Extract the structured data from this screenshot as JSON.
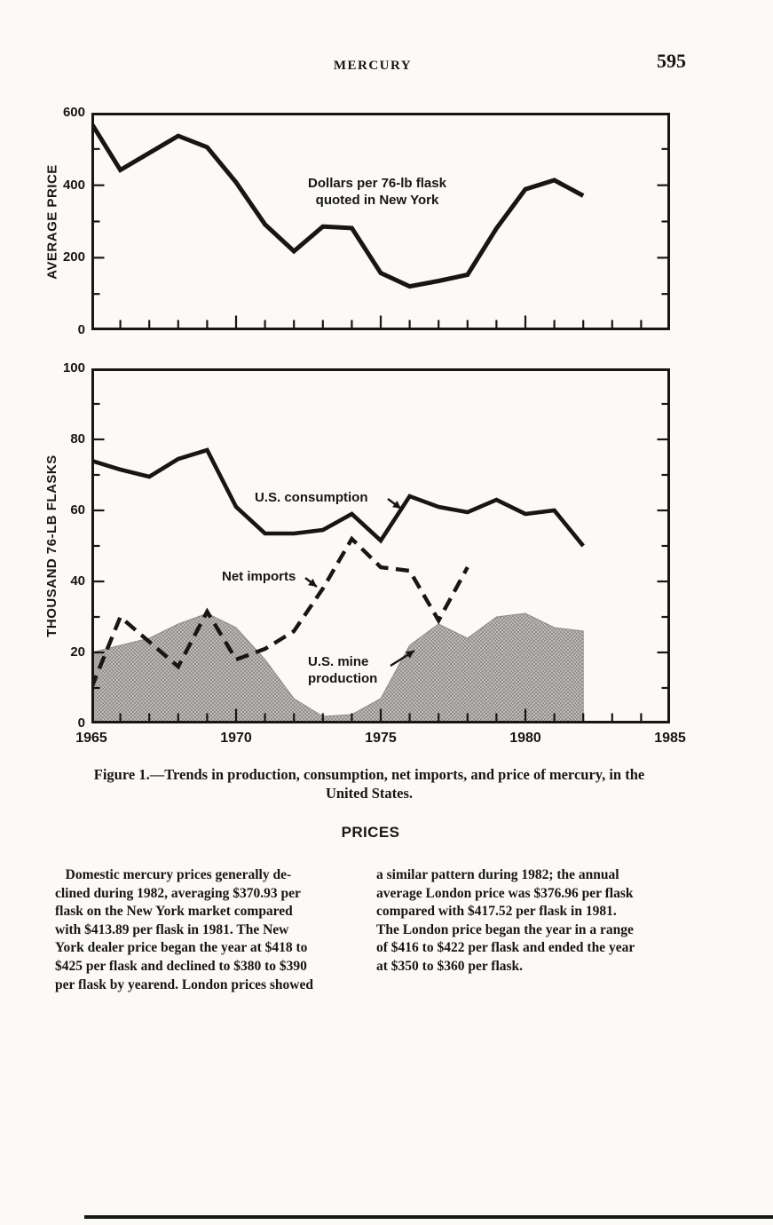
{
  "page": {
    "header_title": "MERCURY",
    "page_number": "595"
  },
  "figure_caption": [
    "Figure 1.—Trends in production, consumption, net imports, and price of mercury, in the",
    "United States."
  ],
  "section_heading": "PRICES",
  "body_text": {
    "left_column_lines": [
      "   Domestic mercury prices generally de-",
      "clined during 1982, averaging $370.93 per",
      "flask on the New York market compared",
      "with $413.89 per flask in 1981. The New",
      "York dealer price began the year at $418 to",
      "$425 per flask and declined to $380 to $390",
      "per flask by yearend. London prices showed"
    ],
    "right_column_lines": [
      "a similar pattern during 1982; the annual",
      "average London price was $376.96 per flask",
      "compared with $417.52 per flask in 1981.",
      "The London price began the year in a range",
      "of $416 to $422 per flask and ended the year",
      "at $350 to $360 per flask."
    ]
  },
  "chart_data": [
    {
      "type": "line",
      "ylabel": "AVERAGE PRICE",
      "annotation": [
        "Dollars per 76-lb flask",
        "quoted in New York"
      ],
      "ylim": [
        0,
        600
      ],
      "yticks_labeled": [
        0,
        200,
        400,
        600
      ],
      "ytick_step": 100,
      "xlim": [
        1965,
        1985
      ],
      "grid": false,
      "series": [
        {
          "name": "New York price, dollars per 76-lb flask",
          "style": "solid",
          "x": [
            1965,
            1966,
            1967,
            1968,
            1969,
            1970,
            1971,
            1972,
            1973,
            1974,
            1975,
            1976,
            1977,
            1978,
            1979,
            1980,
            1981,
            1982
          ],
          "values": [
            571,
            442,
            489,
            536,
            505,
            408,
            292,
            218,
            286,
            282,
            158,
            121,
            136,
            153,
            281,
            389,
            414,
            371
          ]
        }
      ]
    },
    {
      "type": "line-area",
      "ylabel": "THOUSAND 76-LB FLASKS",
      "ylim": [
        0,
        100
      ],
      "yticks_labeled": [
        0,
        20,
        40,
        60,
        80,
        100
      ],
      "ytick_step": 10,
      "xlim": [
        1965,
        1985
      ],
      "xticks_labeled": [
        1965,
        1970,
        1975,
        1980,
        1985
      ],
      "grid": false,
      "series": [
        {
          "name": "U.S. consumption",
          "style": "solid",
          "x": [
            1965,
            1966,
            1967,
            1968,
            1969,
            1970,
            1971,
            1972,
            1973,
            1974,
            1975,
            1976,
            1977,
            1978,
            1979,
            1980,
            1981,
            1982
          ],
          "values": [
            74,
            71.5,
            69.5,
            74.5,
            77,
            61,
            53.5,
            53.5,
            54.5,
            59,
            51.5,
            64,
            61,
            59.5,
            63,
            59,
            60,
            50
          ]
        },
        {
          "name": "Net imports",
          "style": "dashed",
          "x": [
            1965,
            1966,
            1967,
            1968,
            1969,
            1970,
            1971,
            1972,
            1973,
            1974,
            1975,
            1976,
            1977,
            1978
          ],
          "values": [
            10,
            30,
            23,
            16,
            31.5,
            18,
            21,
            26,
            38,
            52,
            44,
            43,
            29,
            44
          ]
        },
        {
          "name": "U.S. mine production",
          "style": "area",
          "x": [
            1965,
            1966,
            1967,
            1968,
            1969,
            1970,
            1971,
            1972,
            1973,
            1974,
            1975,
            1976,
            1977,
            1978,
            1979,
            1980,
            1981,
            1982
          ],
          "values": [
            20,
            22,
            24,
            28,
            31,
            27,
            18,
            7,
            2,
            2.5,
            7,
            22,
            28,
            24,
            30,
            31,
            27,
            26
          ]
        }
      ]
    }
  ]
}
